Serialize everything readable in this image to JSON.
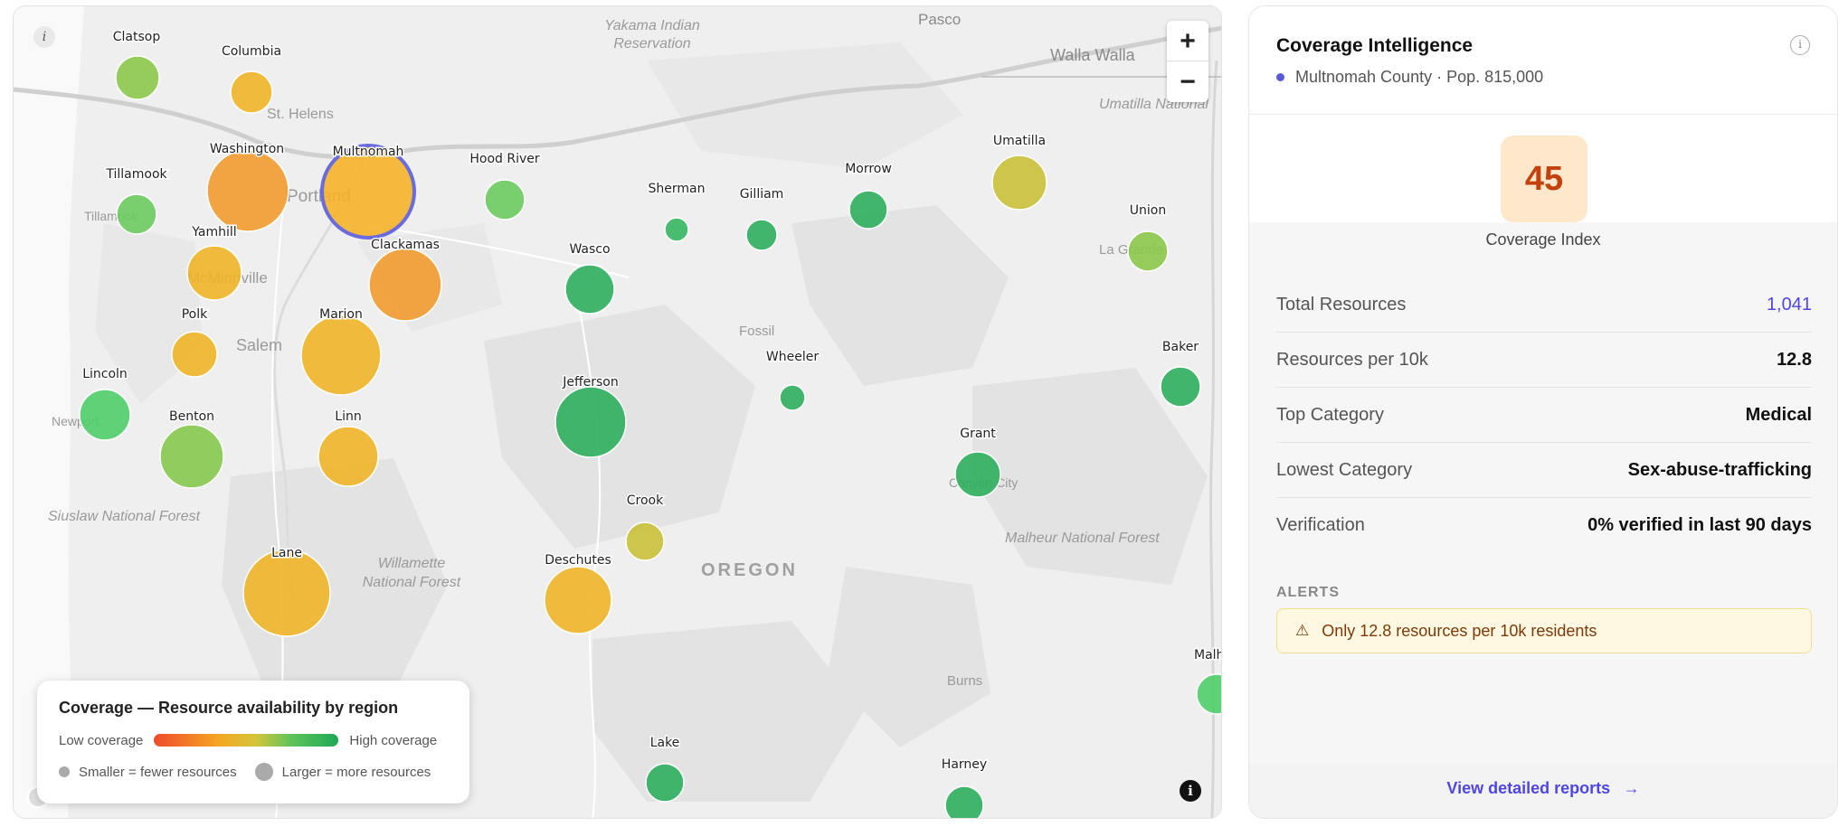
{
  "map": {
    "info_glyph": "i",
    "zoom_in": "+",
    "zoom_out": "−",
    "attribution_glyph": "i",
    "place_labels": [
      "Yakama Indian",
      "Reservation",
      "Pasco",
      "Walla Walla",
      "Umatilla National",
      "St. Helens",
      "Portland",
      "Tillamook",
      "McMinnville",
      "Salem",
      "Newport",
      "Siuslaw National Forest",
      "Willamette",
      "National Forest",
      "Fossil",
      "OREGON",
      "La Grande",
      "Canyon City",
      "Malheur National Forest",
      "Burns"
    ],
    "counties": [
      {
        "name": "Clatsop",
        "color": "#8cc84b"
      },
      {
        "name": "Columbia",
        "color": "#f0b429"
      },
      {
        "name": "Tillamook",
        "color": "#6ccb5f"
      },
      {
        "name": "Washington",
        "color": "#f19b2e"
      },
      {
        "name": "Multnomah",
        "color": "#f5b32a"
      },
      {
        "name": "Hood River",
        "color": "#6ccb5f"
      },
      {
        "name": "Yamhill",
        "color": "#f0b429"
      },
      {
        "name": "Clackamas",
        "color": "#f19b2e"
      },
      {
        "name": "Sherman",
        "color": "#36b760"
      },
      {
        "name": "Gilliam",
        "color": "#2eae5c"
      },
      {
        "name": "Morrow",
        "color": "#2eae5c"
      },
      {
        "name": "Umatilla",
        "color": "#c9c03a"
      },
      {
        "name": "Union",
        "color": "#8cc84b"
      },
      {
        "name": "Wasco",
        "color": "#2eae5c"
      },
      {
        "name": "Polk",
        "color": "#f0b429"
      },
      {
        "name": "Marion",
        "color": "#f0b429"
      },
      {
        "name": "Lincoln",
        "color": "#4fce6a"
      },
      {
        "name": "Benton",
        "color": "#86c84e"
      },
      {
        "name": "Linn",
        "color": "#f0b429"
      },
      {
        "name": "Jefferson",
        "color": "#2eae5c"
      },
      {
        "name": "Wheeler",
        "color": "#2eae5c"
      },
      {
        "name": "Baker",
        "color": "#2eae5c"
      },
      {
        "name": "Grant",
        "color": "#2eae5c"
      },
      {
        "name": "Crook",
        "color": "#c9c03a"
      },
      {
        "name": "Lane",
        "color": "#f0b429"
      },
      {
        "name": "Deschutes",
        "color": "#f0b429"
      },
      {
        "name": "Lake",
        "color": "#2eae5c"
      },
      {
        "name": "Harney",
        "color": "#2eae5c"
      },
      {
        "name": "Malh",
        "color": "#4fce6a"
      }
    ],
    "selected_county": "Multnomah",
    "selected_ring_color": "#6b6be0"
  },
  "legend": {
    "title": "Coverage — Resource availability by region",
    "low_label": "Low coverage",
    "high_label": "High coverage",
    "smaller_label": "Smaller = fewer resources",
    "larger_label": "Larger = more resources"
  },
  "panel": {
    "title": "Coverage Intelligence",
    "subtitle": "Multnomah County · Pop. 815,000",
    "info_glyph": "i",
    "score": "45",
    "score_label": "Coverage Index",
    "stats": [
      {
        "label": "Total Resources",
        "value": "1,041"
      },
      {
        "label": "Resources per 10k",
        "value": "12.8"
      },
      {
        "label": "Top Category",
        "value": "Medical"
      },
      {
        "label": "Lowest Category",
        "value": "Sex-abuse-trafficking"
      },
      {
        "label": "Verification",
        "value": "0% verified in last 90 days"
      }
    ],
    "alerts_heading": "ALERTS",
    "alert_icon": "⚠",
    "alert_text": "Only 12.8 resources per 10k residents",
    "footer_link": "View detailed reports",
    "footer_arrow": "→"
  },
  "colors": {
    "accent": "#4f46e5",
    "score_bg": "#fde8cc",
    "score_text": "#c2410c",
    "alert_bg": "#fef8e3"
  }
}
